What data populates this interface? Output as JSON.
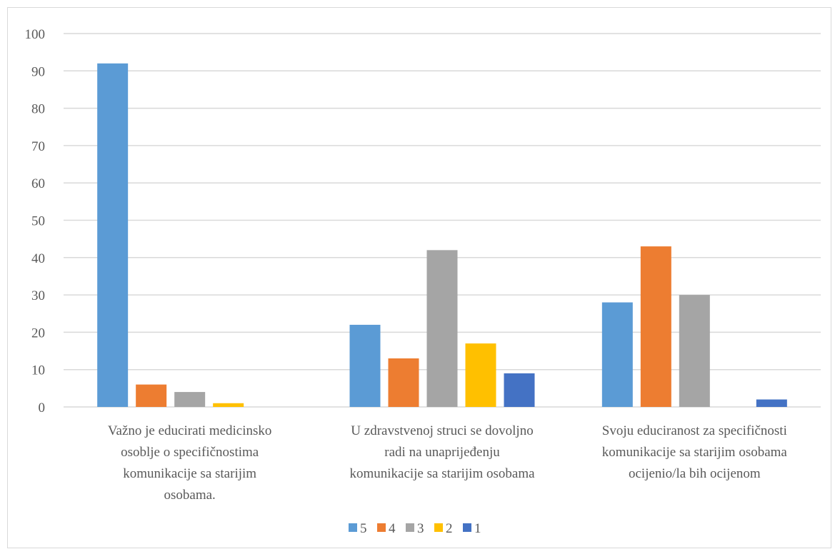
{
  "chart_data": {
    "type": "bar",
    "categories": [
      [
        "Važno je educirati medicinsko",
        "osoblje o specifičnostima",
        "komunikacije sa starijim",
        "osobama."
      ],
      [
        "U zdravstvenoj struci se dovoljno",
        "radi na unaprijeđenju",
        "komunikacije sa starijim osobama"
      ],
      [
        "Svoju educiranost za specifičnosti",
        "komunikacije sa starijim osobama",
        "ocijenio/la bih ocijenom"
      ]
    ],
    "series": [
      {
        "name": "5",
        "color": "#5b9bd5",
        "values": [
          92,
          22,
          28
        ]
      },
      {
        "name": "4",
        "color": "#ed7d31",
        "values": [
          6,
          13,
          43
        ]
      },
      {
        "name": "3",
        "color": "#a5a5a5",
        "values": [
          4,
          42,
          30
        ]
      },
      {
        "name": "2",
        "color": "#ffc000",
        "values": [
          1,
          17,
          0
        ]
      },
      {
        "name": "1",
        "color": "#4472c4",
        "values": [
          0,
          9,
          2
        ]
      }
    ],
    "y_ticks": [
      "0",
      "10",
      "20",
      "30",
      "40",
      "50",
      "60",
      "70",
      "80",
      "90",
      "100"
    ],
    "ylim": [
      0,
      100
    ],
    "grid": true,
    "legend_position": "bottom",
    "gridline_color": "#d9d9d9"
  }
}
